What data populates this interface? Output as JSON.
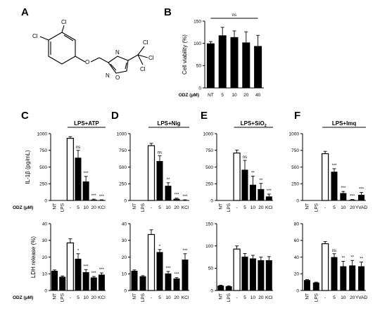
{
  "panels": {
    "A": "A",
    "B": "B",
    "C": "C",
    "D": "D",
    "E": "E",
    "F": "F"
  },
  "structure": {
    "labels": [
      "Cl",
      "Cl",
      "N",
      "N",
      "O",
      "O",
      "Cl",
      "Cl",
      "Cl"
    ]
  },
  "chart_data": [
    {
      "id": "B",
      "type": "bar",
      "categories": [
        "NT",
        "5",
        "10",
        "20",
        "40"
      ],
      "values": [
        100,
        118,
        114,
        102,
        94
      ],
      "errors": [
        4,
        18,
        14,
        24,
        24
      ],
      "ylabel": "Cell viability (%)",
      "xprefix": "ODZ (μM)",
      "ylim": [
        0,
        150
      ],
      "yticks": [
        0,
        50,
        100,
        150
      ],
      "annotation": "ns",
      "fills": [
        "black",
        "black",
        "black",
        "black",
        "black"
      ]
    },
    {
      "id": "C1",
      "type": "bar",
      "categories": [
        "NT",
        "LPS",
        "-",
        "5",
        "10",
        "20",
        "KCl"
      ],
      "values": [
        0,
        0,
        930,
        640,
        285,
        12,
        6
      ],
      "errors": [
        0,
        0,
        25,
        110,
        75,
        8,
        4
      ],
      "sig": [
        "",
        "",
        "",
        "ns",
        "***",
        "***",
        "***"
      ],
      "fills": [
        "black",
        "black",
        "white",
        "black",
        "black",
        "black",
        "black"
      ],
      "ylim": [
        0,
        1000
      ],
      "yticks": [
        0,
        250,
        500,
        750,
        1000
      ],
      "ylabel": "IL-1β (pg/mL)",
      "condition": "LPS+ATP",
      "condition_sub": "",
      "xprefix": "ODZ (μM)",
      "show_xlabels": false
    },
    {
      "id": "C2",
      "type": "bar",
      "categories": [
        "NT",
        "LPS",
        "-",
        "5",
        "10",
        "20",
        "KCl"
      ],
      "values": [
        11.8,
        8.2,
        28.5,
        19,
        11,
        7.8,
        9.5
      ],
      "errors": [
        0.5,
        0.5,
        2.5,
        3,
        1.5,
        0.6,
        1
      ],
      "sig": [
        "",
        "",
        "",
        "*",
        "***",
        "***",
        "***"
      ],
      "fills": [
        "black",
        "black",
        "white",
        "black",
        "black",
        "black",
        "black"
      ],
      "ylim": [
        0,
        40
      ],
      "yticks": [
        0,
        10,
        20,
        30,
        40
      ],
      "ylabel": "LDH release (%)",
      "condition": "",
      "condition_sub": "",
      "xprefix": "ODZ (μM)",
      "show_xlabels": true
    },
    {
      "id": "D1",
      "type": "bar",
      "categories": [
        "NT",
        "LPS",
        "-",
        "5",
        "10",
        "20",
        "KCl"
      ],
      "values": [
        0,
        0,
        820,
        590,
        220,
        25,
        6
      ],
      "errors": [
        0,
        0,
        35,
        80,
        45,
        10,
        4
      ],
      "sig": [
        "",
        "",
        "",
        "ns",
        "**",
        "***",
        "***"
      ],
      "fills": [
        "black",
        "black",
        "white",
        "black",
        "black",
        "black",
        "black"
      ],
      "ylim": [
        0,
        1000
      ],
      "yticks": [
        0,
        250,
        500,
        750,
        1000
      ],
      "ylabel": "",
      "condition": "LPS+Nig",
      "condition_sub": "",
      "xprefix": "",
      "show_xlabels": false
    },
    {
      "id": "D2",
      "type": "bar",
      "categories": [
        "NT",
        "LPS",
        "-",
        "5",
        "10",
        "20",
        "KCl"
      ],
      "values": [
        11.8,
        8.5,
        33.5,
        23,
        10.2,
        7.2,
        18.5
      ],
      "errors": [
        0.5,
        0.4,
        2.8,
        1.5,
        1.2,
        0.5,
        3.5
      ],
      "sig": [
        "",
        "",
        "",
        "*",
        "***",
        "***",
        "***"
      ],
      "fills": [
        "black",
        "black",
        "white",
        "black",
        "black",
        "black",
        "black"
      ],
      "ylim": [
        0,
        40
      ],
      "yticks": [
        0,
        10,
        20,
        30,
        40
      ],
      "ylabel": "",
      "condition": "",
      "condition_sub": "",
      "xprefix": "",
      "show_xlabels": true
    },
    {
      "id": "E1",
      "type": "bar",
      "categories": [
        "NT",
        "LPS",
        "-",
        "5",
        "10",
        "20",
        "KCl"
      ],
      "values": [
        0,
        0,
        710,
        460,
        235,
        170,
        60
      ],
      "errors": [
        0,
        0,
        45,
        140,
        130,
        85,
        35
      ],
      "sig": [
        "",
        "",
        "",
        "ns",
        "**",
        "**",
        "***"
      ],
      "fills": [
        "black",
        "black",
        "white",
        "black",
        "black",
        "black",
        "black"
      ],
      "ylim": [
        0,
        1000
      ],
      "yticks": [
        0,
        250,
        500,
        750,
        1000
      ],
      "ylabel": "",
      "condition": "LPS+SiO",
      "condition_sub": "2",
      "xprefix": "",
      "show_xlabels": false
    },
    {
      "id": "E2",
      "type": "bar",
      "categories": [
        "NT",
        "LPS",
        "-",
        "5",
        "10",
        "20",
        "KCl"
      ],
      "values": [
        11,
        9.5,
        93,
        76,
        72,
        68,
        68
      ],
      "errors": [
        1,
        1,
        7,
        7,
        7,
        7,
        8
      ],
      "sig": [
        "",
        "",
        "",
        "",
        "",
        "",
        ""
      ],
      "fills": [
        "black",
        "black",
        "white",
        "black",
        "black",
        "black",
        "black"
      ],
      "ylim": [
        0,
        150
      ],
      "yticks": [
        0,
        50,
        100,
        150
      ],
      "ylabel": "",
      "condition": "",
      "condition_sub": "",
      "xprefix": "",
      "show_xlabels": true
    },
    {
      "id": "F1",
      "type": "bar",
      "categories": [
        "NT",
        "LPS",
        "-",
        "5",
        "10",
        "20",
        "YVAD"
      ],
      "values": [
        0,
        0,
        700,
        430,
        110,
        10,
        85
      ],
      "errors": [
        0,
        0,
        35,
        45,
        25,
        5,
        35
      ],
      "sig": [
        "",
        "",
        "",
        "***",
        "***",
        "***",
        "***"
      ],
      "fills": [
        "black",
        "black",
        "white",
        "black",
        "black",
        "black",
        "black"
      ],
      "ylim": [
        0,
        1000
      ],
      "yticks": [
        0,
        250,
        500,
        750,
        1000
      ],
      "ylabel": "",
      "condition": "LPS+Imq",
      "condition_sub": "",
      "xprefix": "",
      "show_xlabels": false
    },
    {
      "id": "F2",
      "type": "bar",
      "categories": [
        "NT",
        "LPS",
        "-",
        "5",
        "10",
        "20",
        "YVAD"
      ],
      "values": [
        12.5,
        9.5,
        56,
        40,
        29,
        30,
        29
      ],
      "errors": [
        0.6,
        0.5,
        2.5,
        4,
        6,
        6,
        5
      ],
      "sig": [
        "",
        "",
        "",
        "ns",
        "**",
        "**",
        "**"
      ],
      "fills": [
        "black",
        "black",
        "white",
        "black",
        "black",
        "black",
        "black"
      ],
      "ylim": [
        0,
        80
      ],
      "yticks": [
        0,
        20,
        40,
        60,
        80
      ],
      "ylabel": "",
      "condition": "",
      "condition_sub": "",
      "xprefix": "",
      "show_xlabels": true
    }
  ]
}
